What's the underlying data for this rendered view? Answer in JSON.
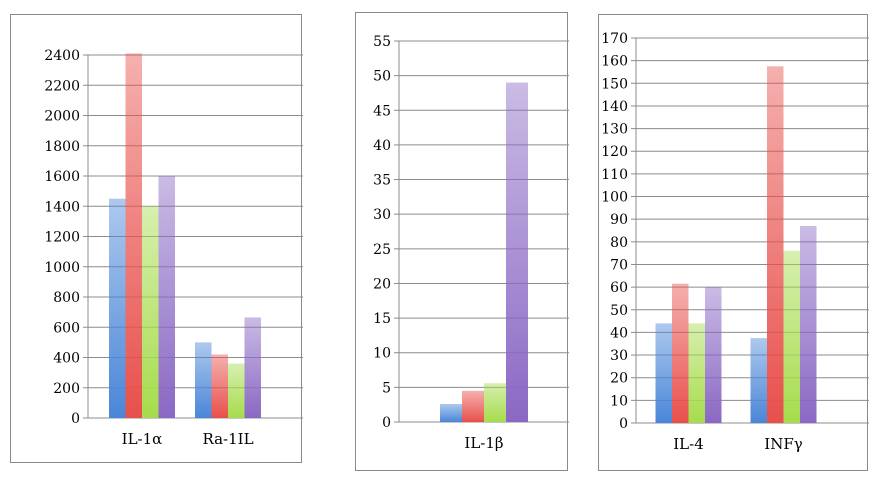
{
  "series_colors": [
    "#4a86d8",
    "#e8504c",
    "#a6dc4c",
    "#8a68c4"
  ],
  "chart_data": [
    {
      "type": "bar",
      "categories": [
        "IL-1α",
        "Ra-1IL"
      ],
      "series": [
        {
          "values": [
            1450,
            500
          ]
        },
        {
          "values": [
            2410,
            420
          ]
        },
        {
          "values": [
            1400,
            360
          ]
        },
        {
          "values": [
            1600,
            665
          ]
        }
      ],
      "ylim": [
        0,
        2400
      ],
      "yticks": [
        "0",
        "200",
        "400",
        "600",
        "800",
        "1000",
        "1200",
        "1400",
        "1600",
        "1800",
        "2000",
        "2200",
        "2400"
      ],
      "grid": true
    },
    {
      "type": "bar",
      "categories": [
        "IL-1β"
      ],
      "series": [
        {
          "values": [
            2.6
          ]
        },
        {
          "values": [
            4.5
          ]
        },
        {
          "values": [
            5.6
          ]
        },
        {
          "values": [
            49
          ]
        }
      ],
      "ylim": [
        0,
        55
      ],
      "yticks": [
        "0",
        "5",
        "10",
        "15",
        "20",
        "25",
        "30",
        "35",
        "40",
        "45",
        "50",
        "55"
      ],
      "grid": true
    },
    {
      "type": "bar",
      "categories": [
        "IL-4",
        "INFγ"
      ],
      "series": [
        {
          "values": [
            44,
            37.5
          ]
        },
        {
          "values": [
            61.5,
            157.5
          ]
        },
        {
          "values": [
            44,
            76
          ]
        },
        {
          "values": [
            60,
            87
          ]
        }
      ],
      "ylim": [
        0,
        170
      ],
      "yticks": [
        "0",
        "10",
        "20",
        "30",
        "40",
        "50",
        "60",
        "70",
        "80",
        "90",
        "100",
        "110",
        "120",
        "130",
        "140",
        "150",
        "160",
        "170"
      ],
      "grid": true
    }
  ]
}
